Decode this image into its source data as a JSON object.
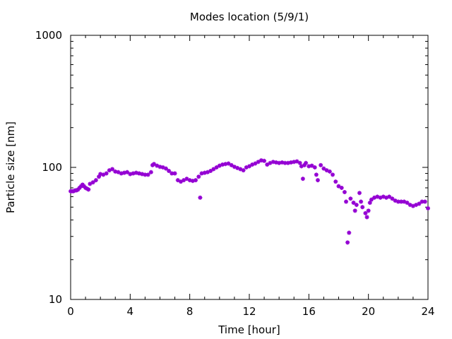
{
  "chart_data": {
    "type": "scatter",
    "title": "Modes location (5/9/1)",
    "xlabel": "Time [hour]",
    "ylabel": "Particle size [nm]",
    "xlim": [
      0,
      24
    ],
    "ylim": [
      10,
      1000
    ],
    "yscale": "log",
    "grid": false,
    "legend": "none",
    "xticks": [
      0,
      4,
      8,
      12,
      16,
      20,
      24
    ],
    "xtick_labels": [
      "0",
      "4",
      "8",
      "12",
      "16",
      "20",
      "24"
    ],
    "yticks": [
      10,
      100,
      1000
    ],
    "ytick_labels": [
      "10",
      "100",
      "1000"
    ],
    "marker_color": "#9400d3",
    "marker": "asterisk",
    "series": [
      {
        "points": [
          [
            0.0,
            66
          ],
          [
            0.1,
            66
          ],
          [
            0.2,
            66
          ],
          [
            0.3,
            67
          ],
          [
            0.4,
            67
          ],
          [
            0.5,
            68
          ],
          [
            0.6,
            70
          ],
          [
            0.7,
            72
          ],
          [
            0.8,
            74
          ],
          [
            0.9,
            72
          ],
          [
            1.0,
            70
          ],
          [
            1.1,
            69
          ],
          [
            1.2,
            68
          ],
          [
            1.3,
            75
          ],
          [
            1.5,
            77
          ],
          [
            1.7,
            80
          ],
          [
            1.9,
            85
          ],
          [
            2.0,
            89
          ],
          [
            2.2,
            88
          ],
          [
            2.4,
            90
          ],
          [
            2.6,
            95
          ],
          [
            2.8,
            97
          ],
          [
            3.0,
            93
          ],
          [
            3.2,
            92
          ],
          [
            3.4,
            90
          ],
          [
            3.6,
            91
          ],
          [
            3.8,
            92
          ],
          [
            4.0,
            89
          ],
          [
            4.2,
            90
          ],
          [
            4.4,
            91
          ],
          [
            4.6,
            90
          ],
          [
            4.8,
            89
          ],
          [
            5.0,
            88
          ],
          [
            5.2,
            88
          ],
          [
            5.4,
            92
          ],
          [
            5.5,
            104
          ],
          [
            5.6,
            106
          ],
          [
            5.8,
            103
          ],
          [
            6.0,
            101
          ],
          [
            6.2,
            100
          ],
          [
            6.4,
            98
          ],
          [
            6.6,
            94
          ],
          [
            6.8,
            90
          ],
          [
            7.0,
            90
          ],
          [
            7.2,
            80
          ],
          [
            7.4,
            78
          ],
          [
            7.6,
            80
          ],
          [
            7.8,
            82
          ],
          [
            8.0,
            80
          ],
          [
            8.2,
            79
          ],
          [
            8.4,
            80
          ],
          [
            8.6,
            85
          ],
          [
            8.7,
            59
          ],
          [
            8.8,
            90
          ],
          [
            9.0,
            91
          ],
          [
            9.2,
            92
          ],
          [
            9.4,
            94
          ],
          [
            9.6,
            97
          ],
          [
            9.8,
            100
          ],
          [
            10.0,
            103
          ],
          [
            10.2,
            105
          ],
          [
            10.4,
            106
          ],
          [
            10.6,
            107
          ],
          [
            10.8,
            104
          ],
          [
            11.0,
            101
          ],
          [
            11.2,
            99
          ],
          [
            11.4,
            97
          ],
          [
            11.6,
            95
          ],
          [
            11.8,
            100
          ],
          [
            12.0,
            102
          ],
          [
            12.2,
            105
          ],
          [
            12.4,
            107
          ],
          [
            12.6,
            110
          ],
          [
            12.8,
            113
          ],
          [
            13.0,
            112
          ],
          [
            13.2,
            105
          ],
          [
            13.4,
            108
          ],
          [
            13.6,
            110
          ],
          [
            13.8,
            109
          ],
          [
            14.0,
            108
          ],
          [
            14.2,
            109
          ],
          [
            14.4,
            108
          ],
          [
            14.6,
            108
          ],
          [
            14.8,
            109
          ],
          [
            15.0,
            110
          ],
          [
            15.2,
            111
          ],
          [
            15.4,
            108
          ],
          [
            15.5,
            102
          ],
          [
            15.6,
            82
          ],
          [
            15.7,
            104
          ],
          [
            15.8,
            108
          ],
          [
            16.0,
            102
          ],
          [
            16.2,
            103
          ],
          [
            16.4,
            100
          ],
          [
            16.5,
            88
          ],
          [
            16.6,
            80
          ],
          [
            16.8,
            104
          ],
          [
            17.0,
            98
          ],
          [
            17.2,
            95
          ],
          [
            17.4,
            93
          ],
          [
            17.6,
            88
          ],
          [
            17.8,
            78
          ],
          [
            18.0,
            72
          ],
          [
            18.2,
            70
          ],
          [
            18.4,
            65
          ],
          [
            18.5,
            55
          ],
          [
            18.6,
            27
          ],
          [
            18.7,
            32
          ],
          [
            18.8,
            58
          ],
          [
            19.0,
            54
          ],
          [
            19.1,
            47
          ],
          [
            19.2,
            52
          ],
          [
            19.4,
            64
          ],
          [
            19.5,
            55
          ],
          [
            19.6,
            50
          ],
          [
            19.8,
            45
          ],
          [
            19.9,
            42
          ],
          [
            20.0,
            47
          ],
          [
            20.1,
            54
          ],
          [
            20.2,
            57
          ],
          [
            20.4,
            59
          ],
          [
            20.6,
            60
          ],
          [
            20.8,
            59
          ],
          [
            21.0,
            60
          ],
          [
            21.2,
            59
          ],
          [
            21.4,
            60
          ],
          [
            21.6,
            58
          ],
          [
            21.8,
            56
          ],
          [
            22.0,
            55
          ],
          [
            22.2,
            55
          ],
          [
            22.4,
            55
          ],
          [
            22.6,
            54
          ],
          [
            22.8,
            52
          ],
          [
            23.0,
            51
          ],
          [
            23.2,
            52
          ],
          [
            23.4,
            53
          ],
          [
            23.6,
            55
          ],
          [
            23.8,
            55
          ],
          [
            24.0,
            49
          ]
        ]
      }
    ]
  }
}
